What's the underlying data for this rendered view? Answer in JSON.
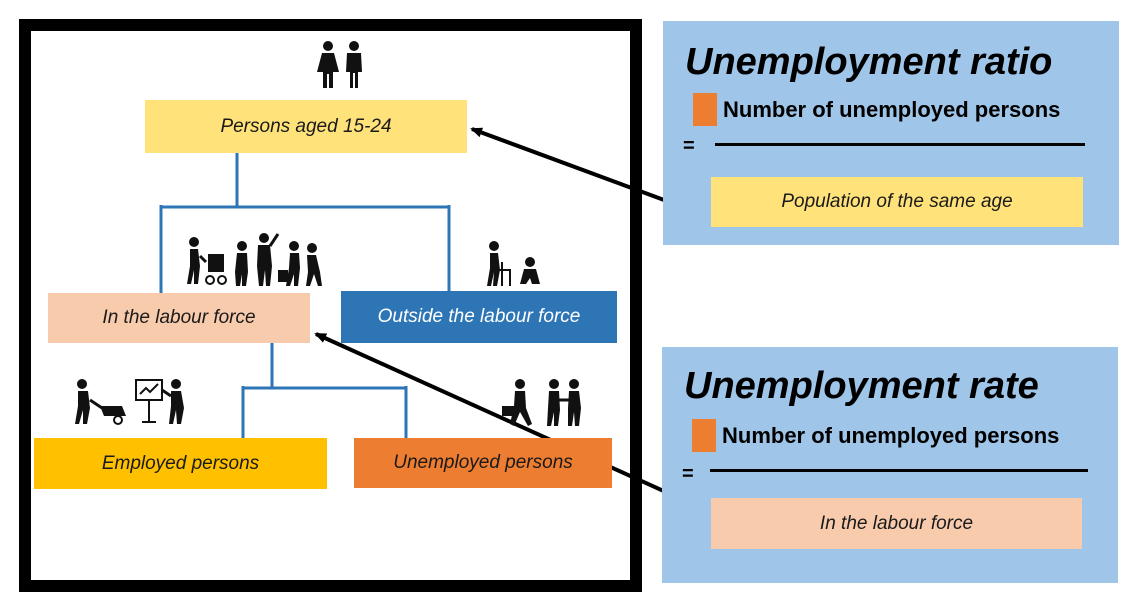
{
  "tree": {
    "root": {
      "label": "Persons aged 15-24",
      "color": "#ffe27a"
    },
    "labour_force": {
      "label": "In the labour force",
      "color": "#f8cbad"
    },
    "outside": {
      "label": "Outside the labour force",
      "color": "#2e75b6"
    },
    "employed": {
      "label": "Employed persons",
      "color": "#ffc000"
    },
    "unemployed": {
      "label": "Unemployed persons",
      "color": "#ed7d31"
    }
  },
  "icons": {
    "root": "man-woman-icon",
    "labour_force": "workers-group-icon",
    "outside": "elderly-and-child-icon",
    "employed": "employed-workers-icon",
    "unemployed": "job-seekers-icon"
  },
  "ratio_panel": {
    "title": "Unemployment ratio",
    "numerator": "Number of unemployed persons",
    "equals": "=",
    "denominator": "Population of the same age",
    "panel_color": "#9fc5e8",
    "marker_color": "#ed7d31",
    "denominator_color": "#ffe27a"
  },
  "rate_panel": {
    "title": "Unemployment rate",
    "numerator": "Number of unemployed persons",
    "equals": "=",
    "denominator": "In the labour force",
    "panel_color": "#9fc5e8",
    "marker_color": "#ed7d31",
    "denominator_color": "#f8cbad"
  },
  "colors": {
    "connector": "#2e75b6",
    "arrow": "#000000",
    "frame": "#000000"
  }
}
